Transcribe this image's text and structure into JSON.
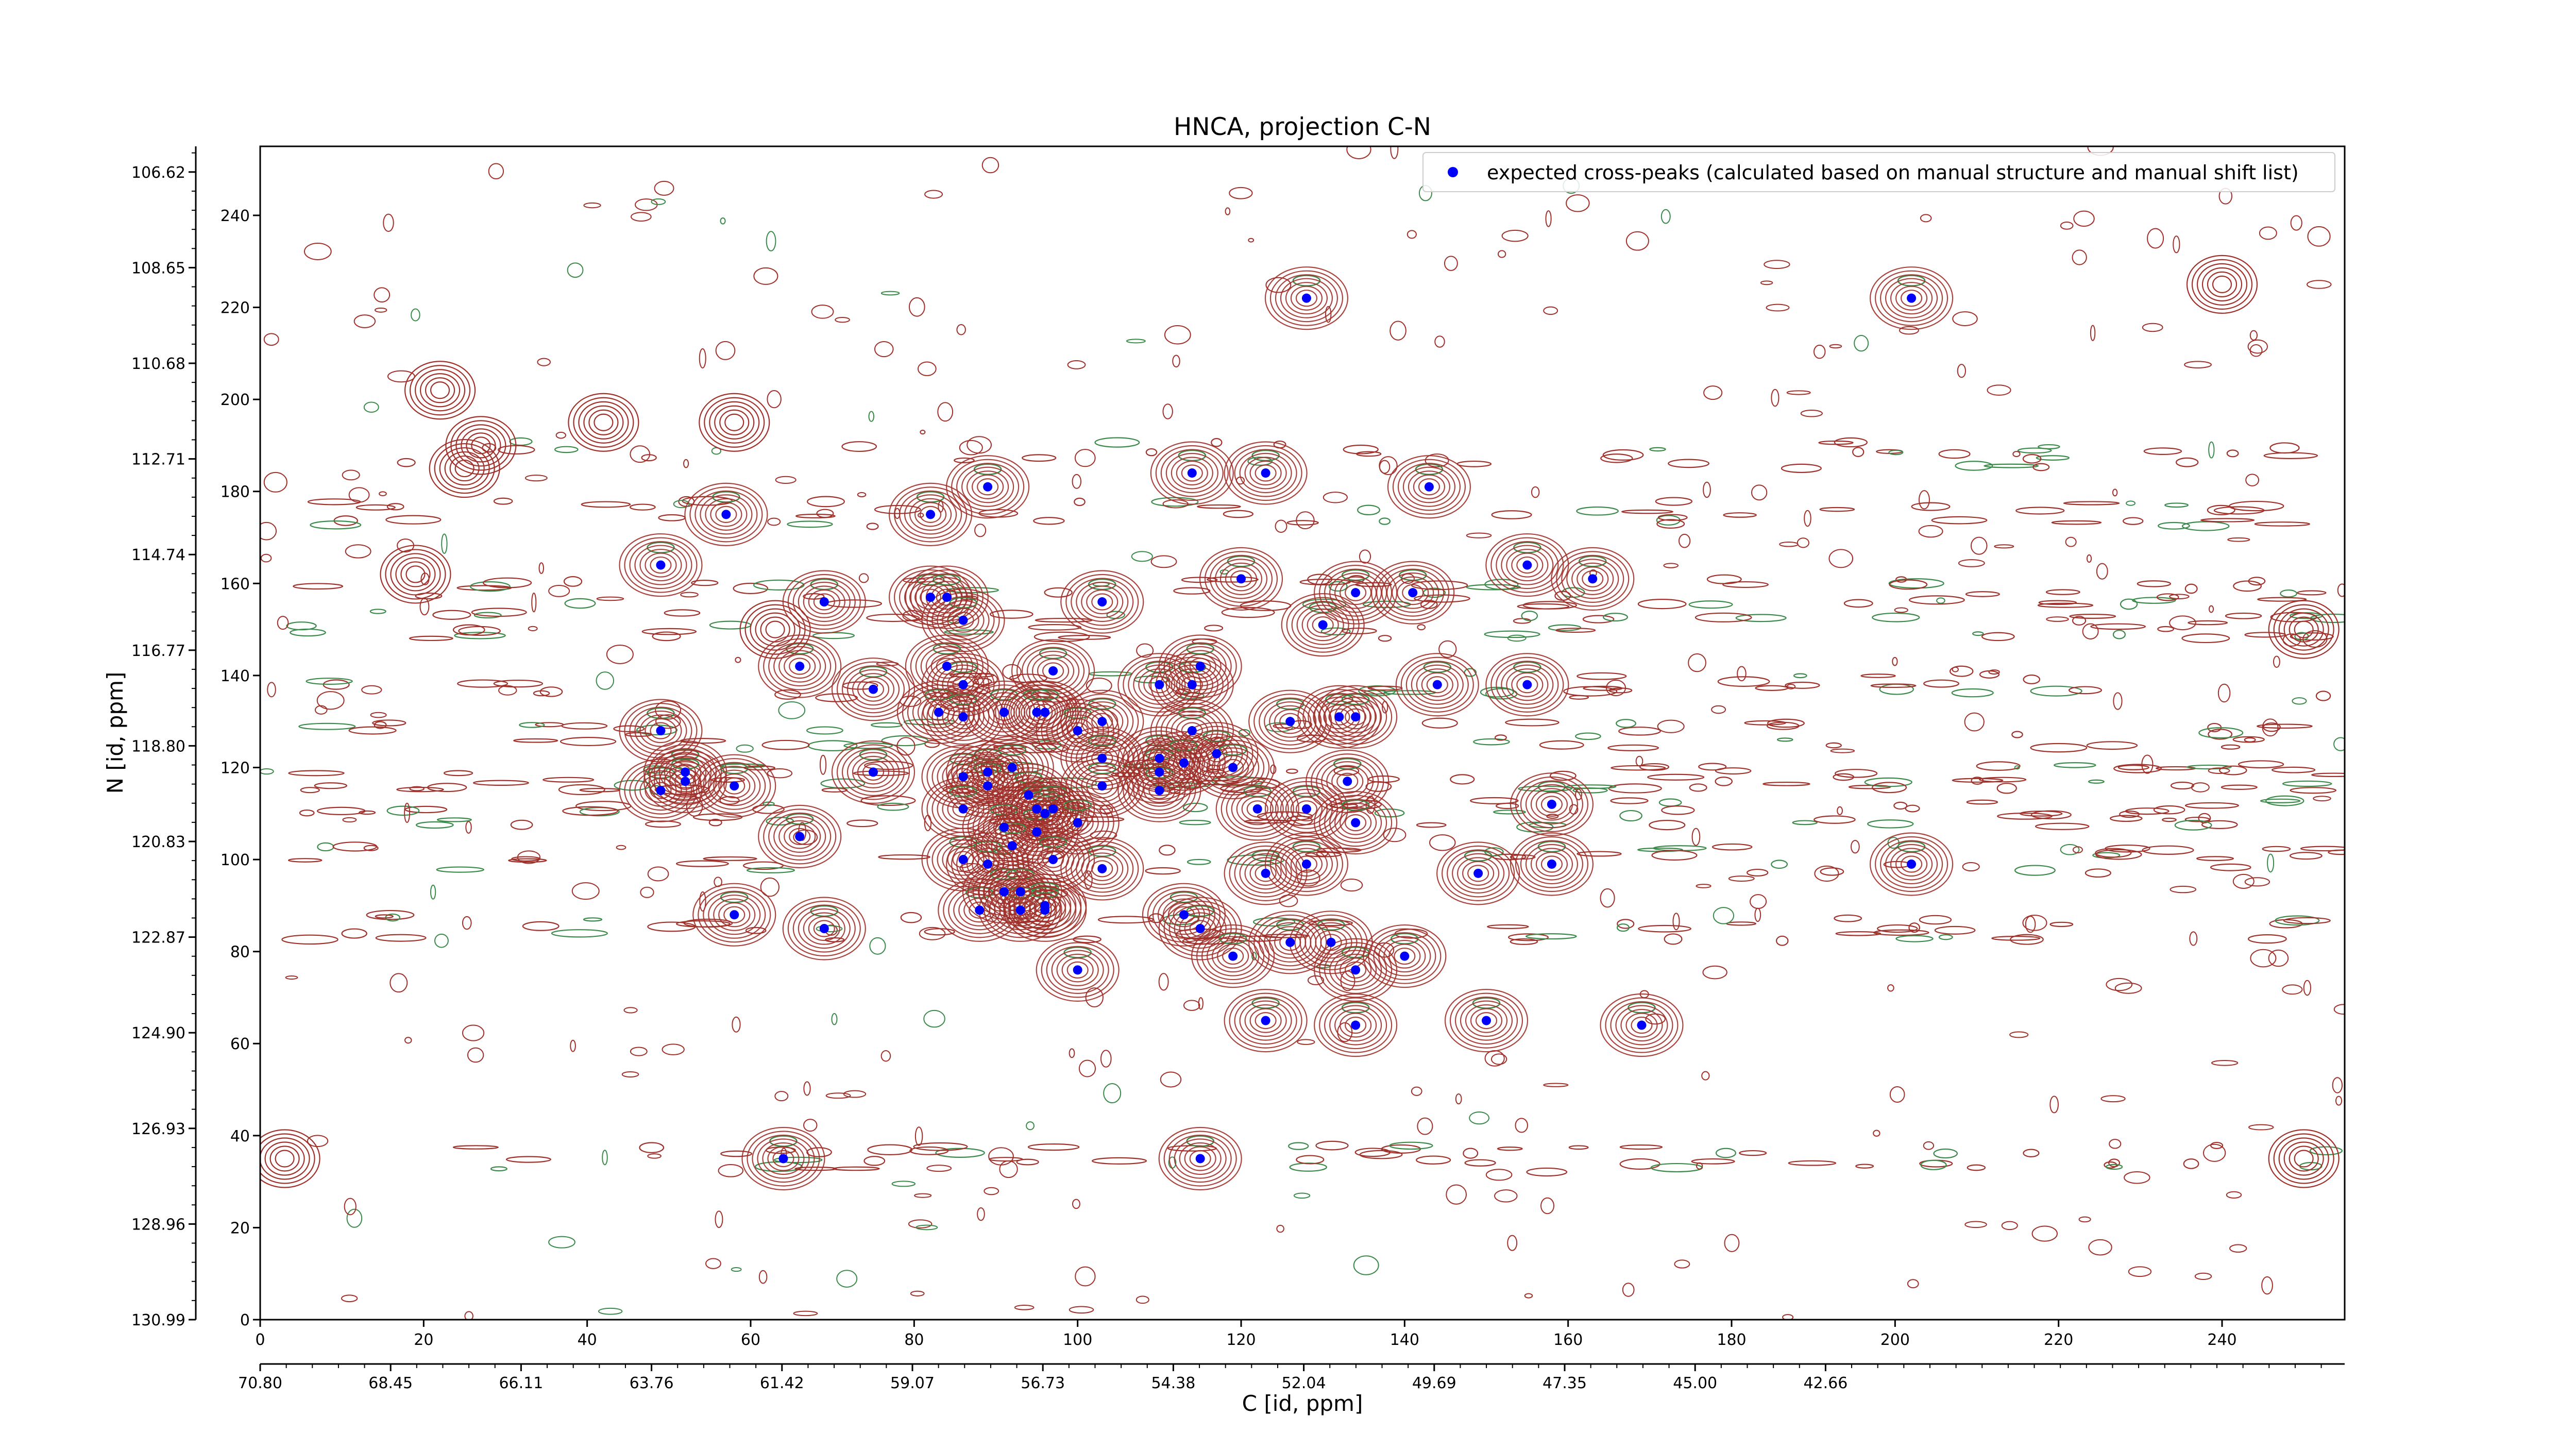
{
  "chart_data": {
    "type": "scatter",
    "title": "HNCA, projection C-N",
    "xlabel": "C [id, ppm]",
    "ylabel": "N [id, ppm]",
    "xlim": [
      0,
      255
    ],
    "ylim": [
      0,
      255
    ],
    "x_index_ticks": [
      "0",
      "20",
      "40",
      "60",
      "80",
      "100",
      "120",
      "140",
      "160",
      "180",
      "200",
      "220",
      "240"
    ],
    "x_ppm_ticks": [
      "70.80",
      "68.45",
      "66.11",
      "63.76",
      "61.42",
      "59.07",
      "56.73",
      "54.38",
      "52.04",
      "49.69",
      "47.35",
      "45.00",
      "42.66"
    ],
    "y_index_ticks": [
      "0",
      "20",
      "40",
      "60",
      "80",
      "100",
      "120",
      "140",
      "160",
      "180",
      "200",
      "220",
      "240"
    ],
    "y_ppm_ticks": [
      "130.99",
      "128.96",
      "126.93",
      "124.90",
      "122.87",
      "120.83",
      "118.80",
      "116.77",
      "114.74",
      "112.71",
      "110.68",
      "108.65",
      "106.62"
    ],
    "legend": {
      "placement": "top-right",
      "label": "expected cross-peaks (calculated based on manual structure and manual shift list)"
    },
    "colors": {
      "peak_marker": "#0000ff",
      "contour_positive": "#a0302a",
      "contour_negative": "#3a8a4a",
      "axis": "#000000"
    },
    "series": [
      {
        "name": "expected cross-peaks (calculated based on manual structure and manual shift list)",
        "points": [
          [
            128,
            222
          ],
          [
            202,
            222
          ],
          [
            89,
            181
          ],
          [
            114,
            184
          ],
          [
            123,
            184
          ],
          [
            143,
            181
          ],
          [
            57,
            175
          ],
          [
            82,
            175
          ],
          [
            49,
            164
          ],
          [
            69,
            156
          ],
          [
            82,
            157
          ],
          [
            84,
            157
          ],
          [
            86,
            152
          ],
          [
            103,
            156
          ],
          [
            120,
            161
          ],
          [
            130,
            151
          ],
          [
            134,
            158
          ],
          [
            141,
            158
          ],
          [
            155,
            164
          ],
          [
            163,
            161
          ],
          [
            66,
            142
          ],
          [
            75,
            137
          ],
          [
            84,
            142
          ],
          [
            86,
            138
          ],
          [
            97,
            141
          ],
          [
            110,
            138
          ],
          [
            114,
            138
          ],
          [
            115,
            142
          ],
          [
            144,
            138
          ],
          [
            155,
            138
          ],
          [
            49,
            128
          ],
          [
            83,
            132
          ],
          [
            86,
            131
          ],
          [
            91,
            132
          ],
          [
            95,
            132
          ],
          [
            96,
            132
          ],
          [
            100,
            128
          ],
          [
            103,
            130
          ],
          [
            114,
            128
          ],
          [
            126,
            130
          ],
          [
            132,
            131
          ],
          [
            134,
            131
          ],
          [
            49,
            115
          ],
          [
            52,
            119
          ],
          [
            52,
            117
          ],
          [
            58,
            116
          ],
          [
            75,
            119
          ],
          [
            86,
            118
          ],
          [
            89,
            119
          ],
          [
            89,
            116
          ],
          [
            92,
            120
          ],
          [
            94,
            114
          ],
          [
            95,
            111
          ],
          [
            96,
            110
          ],
          [
            97,
            111
          ],
          [
            103,
            122
          ],
          [
            103,
            116
          ],
          [
            110,
            122
          ],
          [
            110,
            119
          ],
          [
            110,
            115
          ],
          [
            113,
            121
          ],
          [
            117,
            123
          ],
          [
            119,
            120
          ],
          [
            122,
            111
          ],
          [
            128,
            111
          ],
          [
            133,
            117
          ],
          [
            134,
            108
          ],
          [
            158,
            112
          ],
          [
            86,
            111
          ],
          [
            91,
            107
          ],
          [
            95,
            106
          ],
          [
            100,
            108
          ],
          [
            66,
            105
          ],
          [
            86,
            100
          ],
          [
            89,
            99
          ],
          [
            92,
            103
          ],
          [
            97,
            100
          ],
          [
            103,
            98
          ],
          [
            123,
            97
          ],
          [
            128,
            99
          ],
          [
            149,
            97
          ],
          [
            158,
            99
          ],
          [
            202,
            99
          ],
          [
            88,
            89
          ],
          [
            91,
            93
          ],
          [
            93,
            93
          ],
          [
            93,
            89
          ],
          [
            96,
            89
          ],
          [
            96,
            90
          ],
          [
            58,
            88
          ],
          [
            69,
            85
          ],
          [
            113,
            88
          ],
          [
            115,
            85
          ],
          [
            119,
            79
          ],
          [
            126,
            82
          ],
          [
            131,
            82
          ],
          [
            134,
            76
          ],
          [
            140,
            79
          ],
          [
            100,
            76
          ],
          [
            123,
            65
          ],
          [
            134,
            64
          ],
          [
            150,
            65
          ],
          [
            169,
            64
          ],
          [
            64,
            35
          ],
          [
            115,
            35
          ]
        ]
      }
    ]
  }
}
